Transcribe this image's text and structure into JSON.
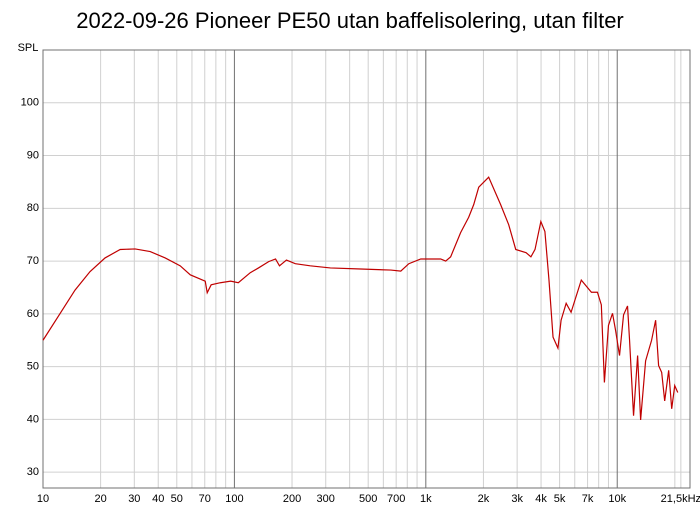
{
  "chart_data": {
    "type": "line",
    "title": "2022-09-26 Pioneer PE50 utan baffelisolering, utan filter",
    "y_label": "SPL",
    "log_x": true,
    "grid": true,
    "xlim": [
      10,
      24000
    ],
    "ylim": [
      27,
      110
    ],
    "xticks": [
      10,
      20,
      30,
      40,
      50,
      70,
      100,
      200,
      300,
      500,
      700,
      {
        "value": 1000,
        "label": "1k"
      },
      {
        "value": 2000,
        "label": "2k"
      },
      {
        "value": 3000,
        "label": "3k"
      },
      {
        "value": 4000,
        "label": "4k"
      },
      {
        "value": 5000,
        "label": "5k"
      },
      {
        "value": 7000,
        "label": "7k"
      },
      {
        "value": 10000,
        "label": "10k"
      },
      {
        "value": 21500,
        "label": "21,5kHz"
      }
    ],
    "minor_xticks": [
      60,
      80,
      90,
      400,
      600,
      800,
      900,
      6000,
      8000,
      9000,
      20000
    ],
    "yticks": [
      30,
      40,
      50,
      60,
      70,
      80,
      90,
      100
    ],
    "series": [
      {
        "name": "SPL",
        "color": "#c00000",
        "x": [
          10,
          12.3,
          14.7,
          17.6,
          21.1,
          25.3,
          30.3,
          36.3,
          43.5,
          52.1,
          58.8,
          66.3,
          70.4,
          72.1,
          75.6,
          84.5,
          95.6,
          104.8,
          121,
          133.6,
          151,
          164,
          172,
          187,
          208,
          249,
          317,
          457,
          657,
          740,
          815,
          941,
          1196,
          1270,
          1348,
          1520,
          1675,
          1779,
          1890,
          2130,
          2460,
          2710,
          2950,
          3340,
          3540,
          3720,
          3990,
          4190,
          4400,
          4620,
          4900,
          5090,
          5410,
          5740,
          6490,
          7330,
          7880,
          8260,
          8570,
          9000,
          9450,
          9800,
          10280,
          10790,
          11320,
          11600,
          12170,
          12780,
          13250,
          14070,
          15120,
          15870,
          16450,
          17070,
          17700,
          18570,
          19260,
          19970,
          20720
        ],
        "values": [
          55.0,
          60.1,
          64.5,
          68,
          70.6,
          72.2,
          72.3,
          71.8,
          70.6,
          69.1,
          67.4,
          66.6,
          66.2,
          64,
          65.5,
          65.9,
          66.2,
          65.9,
          67.8,
          68.7,
          69.9,
          70.4,
          69.1,
          70.2,
          69.5,
          69.1,
          68.7,
          68.5,
          68.3,
          68.1,
          69.5,
          70.4,
          70.4,
          70,
          70.8,
          75.4,
          78.3,
          80.7,
          84,
          85.9,
          80.7,
          76.9,
          72.2,
          71.6,
          70.8,
          72.2,
          77.5,
          75.6,
          66.4,
          55.6,
          53.5,
          58.8,
          62,
          60.3,
          66.4,
          64.1,
          64.1,
          61.7,
          47,
          57.8,
          60.1,
          56.9,
          52.1,
          59.8,
          61.5,
          55,
          40.7,
          52.1,
          39.9,
          51.1,
          55,
          58.8,
          50.2,
          48.9,
          43.5,
          49.3,
          42,
          46.4,
          45.1
        ]
      }
    ]
  }
}
